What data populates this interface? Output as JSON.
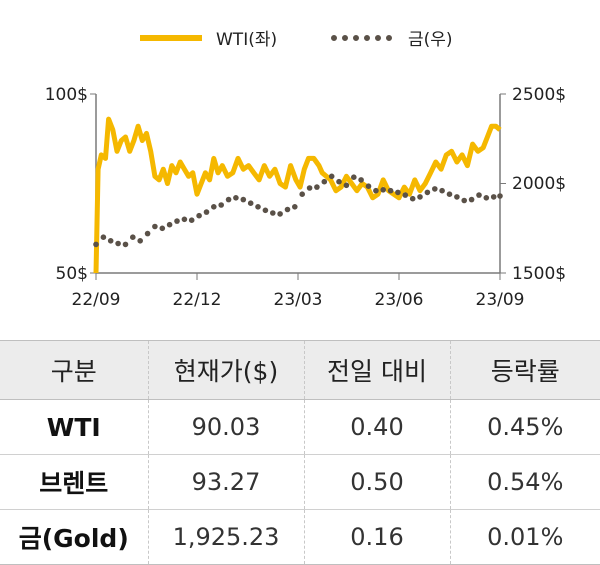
{
  "chart_data": {
    "type": "line",
    "legend": {
      "position": "top-center"
    },
    "x_tick_labels": [
      "22/09",
      "22/12",
      "23/03",
      "23/06",
      "23/09"
    ],
    "y_left": {
      "range": [
        50,
        100
      ],
      "tick_labels": [
        "100$",
        "50$"
      ]
    },
    "y_right": {
      "range": [
        1500,
        2500
      ],
      "tick_labels": [
        "2500$",
        "2000$",
        "1500$"
      ]
    },
    "grid": false,
    "colors": {
      "wti": "#f5b800",
      "gold": "#5a5148"
    },
    "series": [
      {
        "name": "WTI(좌)",
        "axis": "left",
        "style": "solid",
        "x": [
          "2022-09-01",
          "2022-09-03",
          "2022-09-06",
          "2022-09-10",
          "2022-09-13",
          "2022-09-17",
          "2022-09-21",
          "2022-09-25",
          "2022-09-29",
          "2022-10-03",
          "2022-10-07",
          "2022-10-11",
          "2022-10-15",
          "2022-10-19",
          "2022-10-23",
          "2022-10-27",
          "2022-10-31",
          "2022-11-04",
          "2022-11-08",
          "2022-11-12",
          "2022-11-16",
          "2022-11-20",
          "2022-11-24",
          "2022-11-28",
          "2022-12-02",
          "2022-12-06",
          "2022-12-10",
          "2022-12-14",
          "2022-12-18",
          "2022-12-22",
          "2022-12-26",
          "2022-12-30",
          "2023-01-04",
          "2023-01-09",
          "2023-01-14",
          "2023-01-19",
          "2023-01-24",
          "2023-01-29",
          "2023-02-03",
          "2023-02-08",
          "2023-02-13",
          "2023-02-18",
          "2023-02-23",
          "2023-02-28",
          "2023-03-05",
          "2023-03-10",
          "2023-03-14",
          "2023-03-18",
          "2023-03-22",
          "2023-03-27",
          "2023-04-01",
          "2023-04-04",
          "2023-04-08",
          "2023-04-12",
          "2023-04-17",
          "2023-04-22",
          "2023-04-27",
          "2023-05-02",
          "2023-05-07",
          "2023-05-12",
          "2023-05-17",
          "2023-05-22",
          "2023-05-27",
          "2023-06-01",
          "2023-06-06",
          "2023-06-11",
          "2023-06-16",
          "2023-06-21",
          "2023-06-26",
          "2023-07-01",
          "2023-07-06",
          "2023-07-11",
          "2023-07-16",
          "2023-07-21",
          "2023-07-26",
          "2023-07-31",
          "2023-08-05",
          "2023-08-10",
          "2023-08-15",
          "2023-08-20",
          "2023-08-25",
          "2023-08-30",
          "2023-09-04",
          "2023-09-08",
          "2023-09-12",
          "2023-09-16",
          "2023-09-20"
        ],
        "values": [
          50,
          79,
          83,
          82,
          93,
          90,
          84,
          87,
          88,
          84,
          87,
          91,
          87,
          89,
          84,
          77,
          76,
          79,
          75,
          80,
          78,
          81,
          79,
          77,
          78,
          72,
          75,
          78,
          76,
          82,
          78,
          80,
          77,
          78,
          82,
          79,
          80,
          78,
          76,
          80,
          77,
          79,
          75,
          74,
          80,
          76,
          74,
          79,
          82,
          82,
          80,
          78,
          77,
          76,
          73,
          74,
          77,
          75,
          73,
          75,
          74,
          71,
          72,
          76,
          73,
          72,
          71,
          74,
          72,
          76,
          73,
          75,
          78,
          81,
          79,
          83,
          84,
          81,
          83,
          80,
          86,
          84,
          85,
          88,
          91,
          91,
          90
        ]
      },
      {
        "name": "금(우)",
        "axis": "right",
        "style": "dotted",
        "x": [
          "2022-09-01",
          "2022-09-08",
          "2022-09-15",
          "2022-09-22",
          "2022-09-29",
          "2022-10-06",
          "2022-10-13",
          "2022-10-20",
          "2022-10-27",
          "2022-11-03",
          "2022-11-10",
          "2022-11-17",
          "2022-11-24",
          "2022-12-01",
          "2022-12-08",
          "2022-12-15",
          "2022-12-22",
          "2022-12-29",
          "2023-01-05",
          "2023-01-12",
          "2023-01-19",
          "2023-01-26",
          "2023-02-02",
          "2023-02-09",
          "2023-02-16",
          "2023-02-23",
          "2023-03-02",
          "2023-03-09",
          "2023-03-16",
          "2023-03-23",
          "2023-03-30",
          "2023-04-06",
          "2023-04-13",
          "2023-04-20",
          "2023-04-27",
          "2023-05-04",
          "2023-05-11",
          "2023-05-18",
          "2023-05-25",
          "2023-06-01",
          "2023-06-08",
          "2023-06-15",
          "2023-06-22",
          "2023-06-29",
          "2023-07-06",
          "2023-07-13",
          "2023-07-20",
          "2023-07-27",
          "2023-08-03",
          "2023-08-10",
          "2023-08-17",
          "2023-08-24",
          "2023-08-31",
          "2023-09-07",
          "2023-09-14",
          "2023-09-20"
        ],
        "values": [
          1660,
          1700,
          1680,
          1665,
          1660,
          1700,
          1680,
          1720,
          1760,
          1750,
          1770,
          1790,
          1800,
          1795,
          1820,
          1840,
          1870,
          1880,
          1910,
          1920,
          1910,
          1890,
          1870,
          1850,
          1835,
          1830,
          1855,
          1870,
          1940,
          1975,
          1980,
          2010,
          2040,
          2010,
          1990,
          2035,
          2020,
          1985,
          1960,
          1965,
          1960,
          1950,
          1935,
          1915,
          1925,
          1950,
          1970,
          1960,
          1940,
          1925,
          1905,
          1910,
          1935,
          1920,
          1925,
          1930
        ]
      }
    ]
  },
  "table": {
    "headers": [
      "구분",
      "현재가($)",
      "전일 대비",
      "등락률"
    ],
    "rows": [
      [
        "WTI",
        "90.03",
        "0.40",
        "0.45%"
      ],
      [
        "브렌트",
        "93.27",
        "0.50",
        "0.54%"
      ],
      [
        "금(Gold)",
        "1,925.23",
        "0.16",
        "0.01%"
      ]
    ]
  }
}
